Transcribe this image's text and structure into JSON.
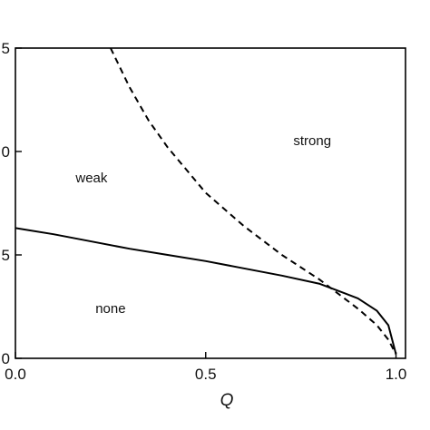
{
  "chart_data": {
    "type": "line",
    "title": "",
    "xlabel": "Q",
    "ylabel": "",
    "xlim": [
      0,
      1.025
    ],
    "ylim": [
      0,
      1.5
    ],
    "x_ticks": [
      {
        "value": 0.0,
        "label": "0.0"
      },
      {
        "value": 0.5,
        "label": "0.5"
      },
      {
        "value": 1.0,
        "label": "1.0"
      }
    ],
    "y_ticks": [
      {
        "value": 0.5,
        "label": "5"
      },
      {
        "value": 1.0,
        "label": "0"
      },
      {
        "value": 1.5,
        "label": "5"
      },
      {
        "value": 0.0,
        "label": "0"
      }
    ],
    "grid": false,
    "series": [
      {
        "style": "solid",
        "x": [
          0.0,
          0.1,
          0.2,
          0.3,
          0.4,
          0.5,
          0.6,
          0.7,
          0.8,
          0.9,
          0.95,
          0.98,
          1.0
        ],
        "y": [
          0.63,
          0.6,
          0.565,
          0.53,
          0.5,
          0.47,
          0.435,
          0.4,
          0.36,
          0.29,
          0.23,
          0.16,
          0.02
        ]
      },
      {
        "style": "dashed",
        "x": [
          0.25,
          0.3,
          0.35,
          0.4,
          0.5,
          0.6,
          0.7,
          0.8,
          0.9,
          0.95,
          0.98,
          1.0
        ],
        "y": [
          1.5,
          1.31,
          1.15,
          1.02,
          0.8,
          0.64,
          0.5,
          0.38,
          0.24,
          0.16,
          0.09,
          0.02
        ]
      }
    ],
    "annotations": [
      {
        "text": "strong",
        "x": 0.78,
        "y": 1.03
      },
      {
        "text": "weak",
        "x": 0.2,
        "y": 0.85
      },
      {
        "text": "none",
        "x": 0.25,
        "y": 0.22
      }
    ]
  }
}
